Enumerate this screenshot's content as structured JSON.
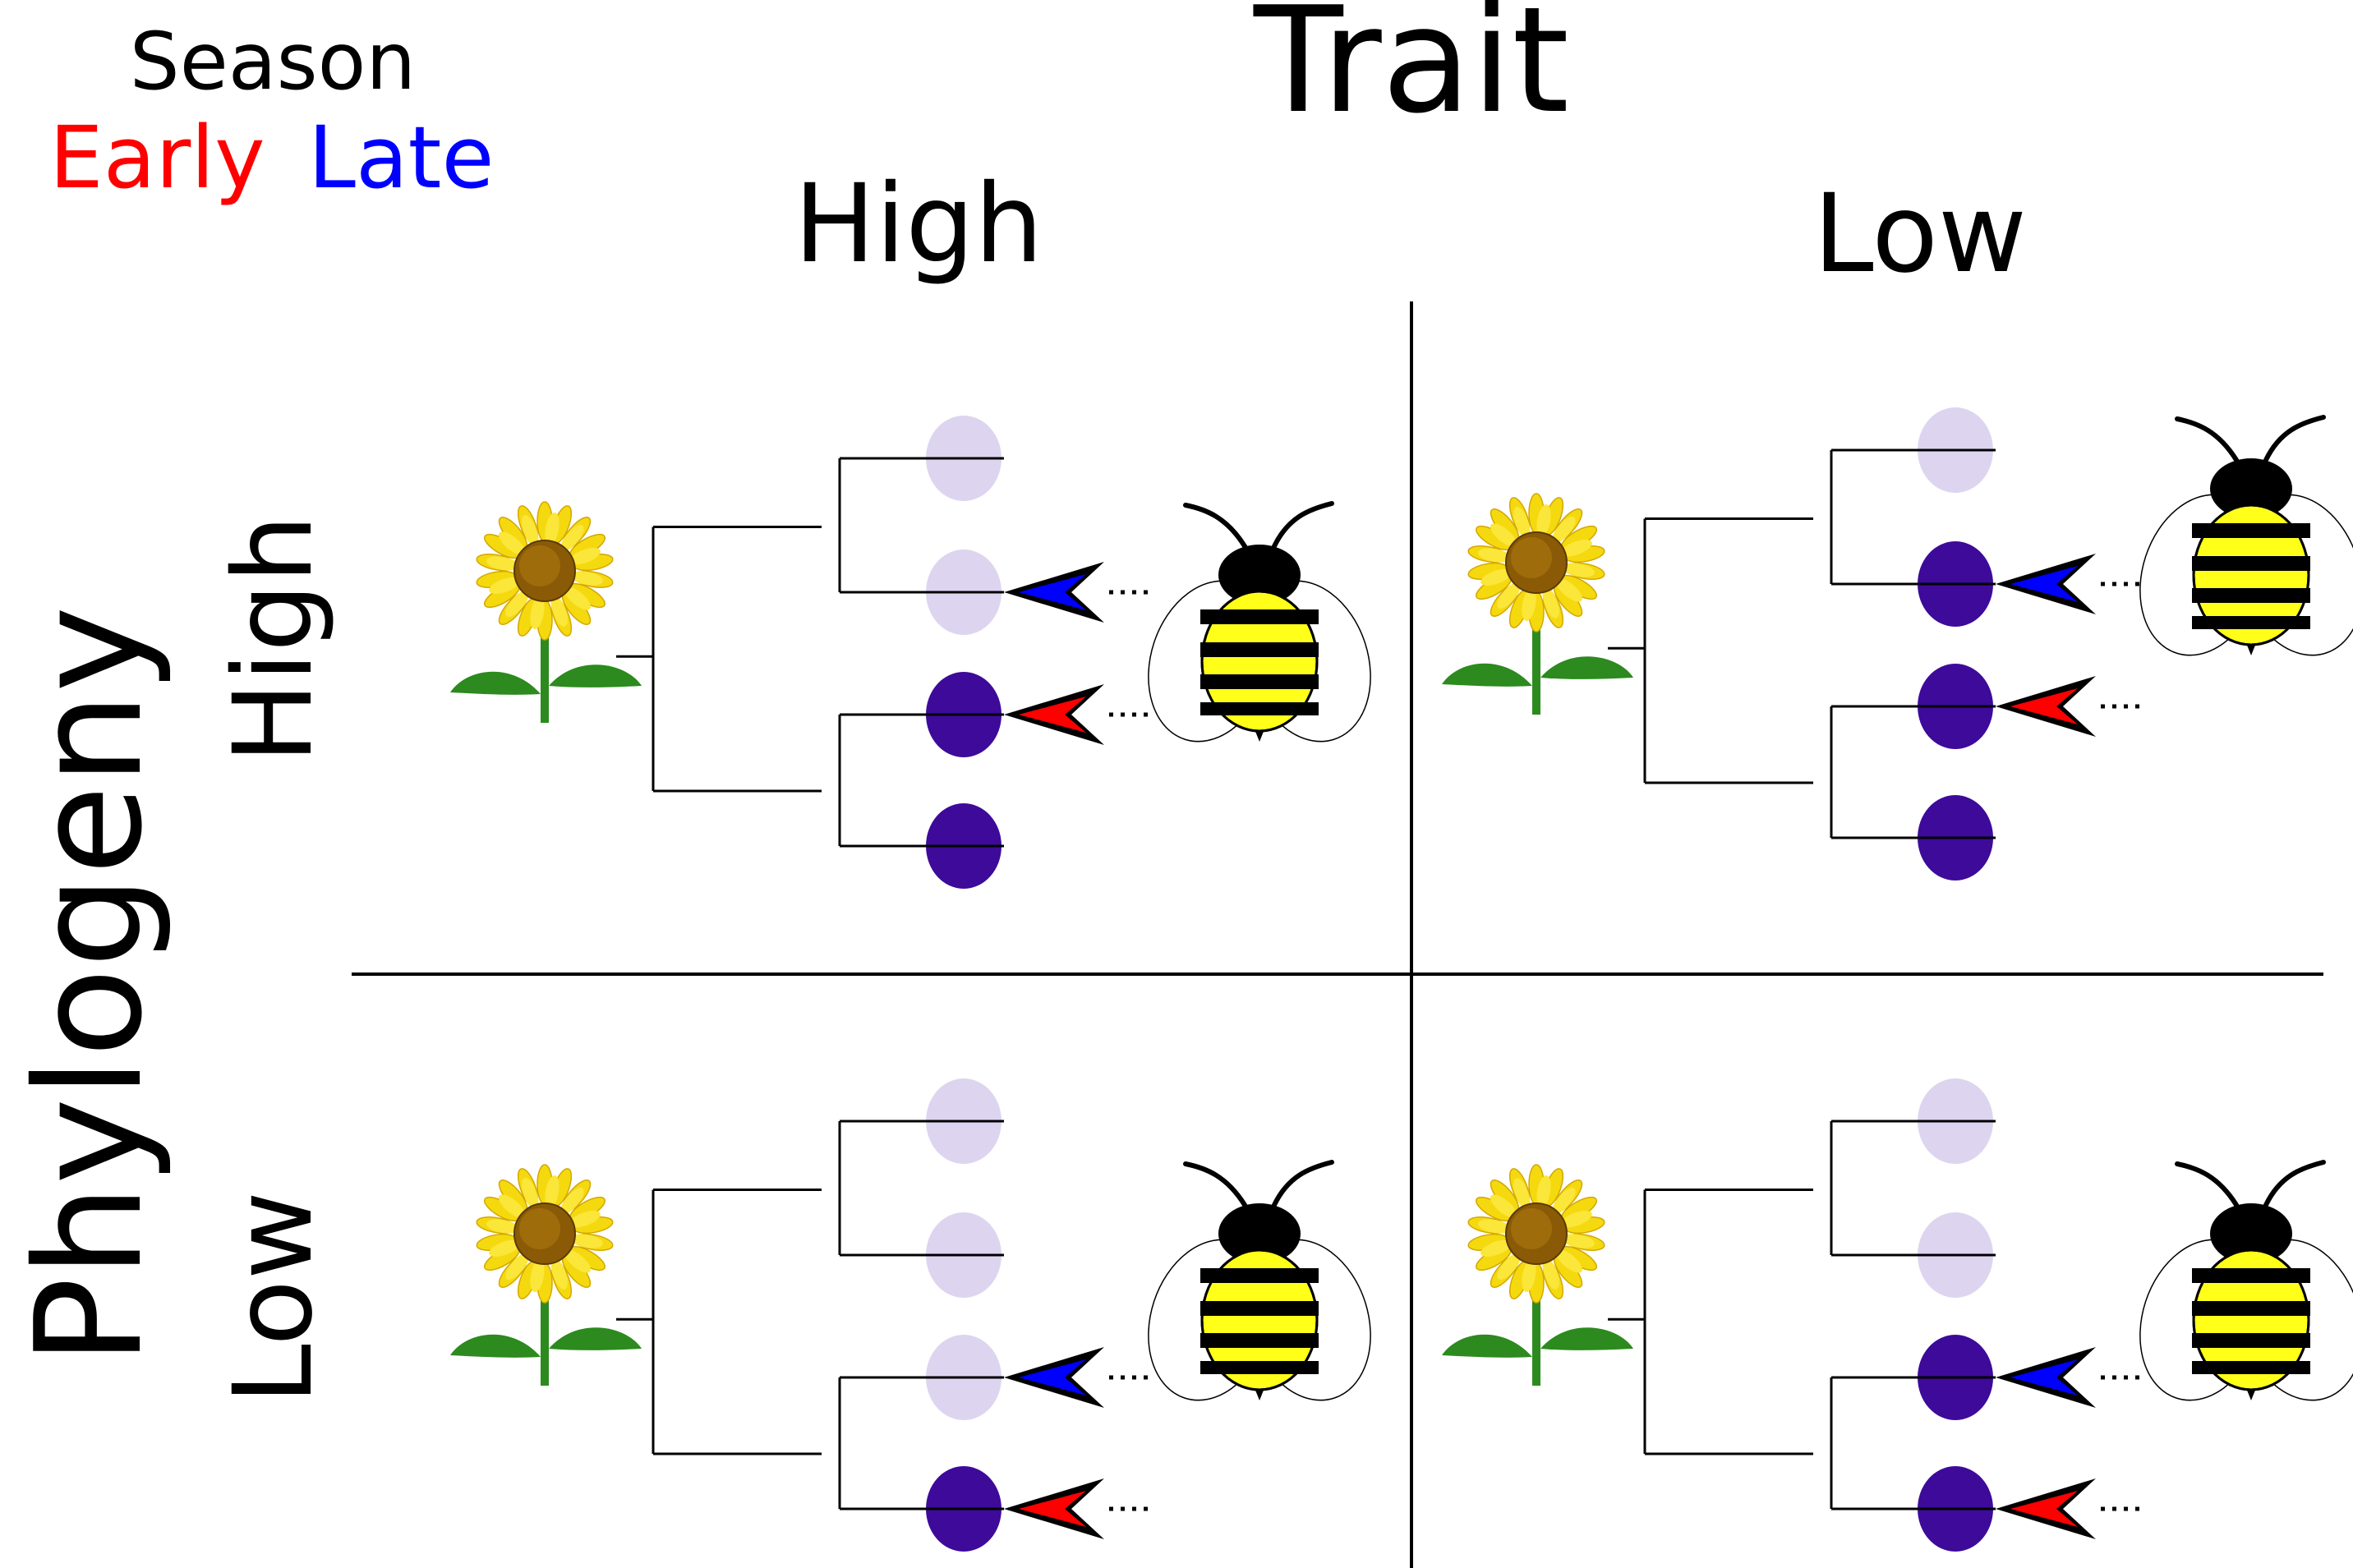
{
  "legend": {
    "title": "Season",
    "early": "Early",
    "late": "Late"
  },
  "axes": {
    "columns": {
      "title": "Trait",
      "high": "High",
      "low": "Low"
    },
    "rows": {
      "title": "Phylogeny",
      "high": "High",
      "low": "Low"
    }
  },
  "colors": {
    "early": "#ff0000",
    "late": "#0000ff",
    "flower_visited": "#3d0a9a",
    "flower_unvisited": "#ddd5ef",
    "bee_yellow": "#ffff1a",
    "leaf": "#2c8a1e",
    "petal": "#f5d90f",
    "disc": "#8a5a06"
  },
  "panels": [
    {
      "name": "trait-high-phylo-high",
      "trait": "High",
      "phylogeny": "High",
      "tips": [
        {
          "visited": false,
          "arrow": "none"
        },
        {
          "visited": false,
          "arrow": "late"
        },
        {
          "visited": true,
          "arrow": "early"
        },
        {
          "visited": true,
          "arrow": "none"
        }
      ]
    },
    {
      "name": "trait-low-phylo-high",
      "trait": "Low",
      "phylogeny": "High",
      "tips": [
        {
          "visited": false,
          "arrow": "none"
        },
        {
          "visited": true,
          "arrow": "late"
        },
        {
          "visited": true,
          "arrow": "early"
        },
        {
          "visited": true,
          "arrow": "none"
        }
      ]
    },
    {
      "name": "trait-high-phylo-low",
      "trait": "High",
      "phylogeny": "Low",
      "tips": [
        {
          "visited": false,
          "arrow": "none"
        },
        {
          "visited": false,
          "arrow": "none"
        },
        {
          "visited": false,
          "arrow": "late"
        },
        {
          "visited": true,
          "arrow": "early"
        }
      ]
    },
    {
      "name": "trait-low-phylo-low",
      "trait": "Low",
      "phylogeny": "Low",
      "tips": [
        {
          "visited": false,
          "arrow": "none"
        },
        {
          "visited": false,
          "arrow": "none"
        },
        {
          "visited": true,
          "arrow": "late"
        },
        {
          "visited": true,
          "arrow": "early"
        }
      ]
    }
  ]
}
